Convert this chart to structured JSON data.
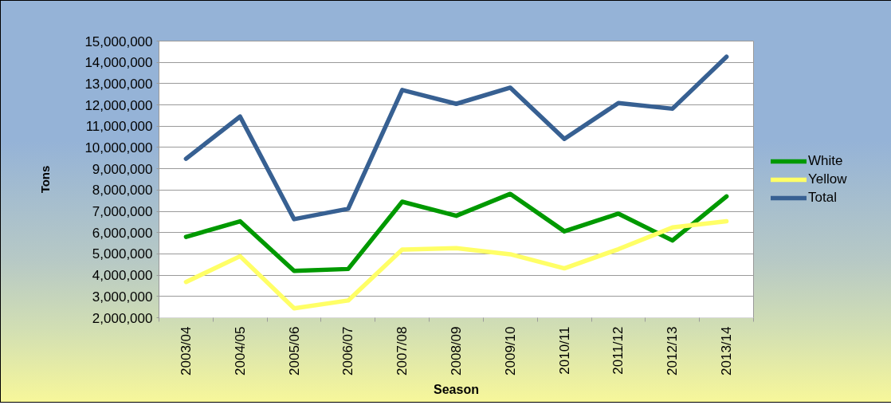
{
  "chart_data": {
    "type": "line",
    "xlabel": "Season",
    "ylabel": "Tons",
    "categories": [
      "2003/04",
      "2004/05",
      "2005/06",
      "2006/07",
      "2007/08",
      "2008/09",
      "2009/10",
      "2010/11",
      "2011/12",
      "2012/13",
      "2013/14"
    ],
    "series": [
      {
        "name": "White",
        "color": "#009900",
        "values": [
          5800000,
          6530000,
          4200000,
          4290000,
          7450000,
          6790000,
          7820000,
          6060000,
          6890000,
          5630000,
          7700000
        ]
      },
      {
        "name": "Yellow",
        "color": "#ffff66",
        "values": [
          3680000,
          4890000,
          2440000,
          2810000,
          5200000,
          5270000,
          4980000,
          4320000,
          5220000,
          6240000,
          6530000
        ]
      },
      {
        "name": "Total",
        "color": "#376092",
        "values": [
          9470000,
          11450000,
          6630000,
          7120000,
          12700000,
          12050000,
          12810000,
          10400000,
          12090000,
          11820000,
          14260000
        ]
      }
    ],
    "ylim": [
      2000000,
      15000000
    ],
    "yticks": [
      {
        "value": 2000000,
        "label": "2,000,000"
      },
      {
        "value": 3000000,
        "label": "3,000,000"
      },
      {
        "value": 4000000,
        "label": "4,000,000"
      },
      {
        "value": 5000000,
        "label": "5,000,000"
      },
      {
        "value": 6000000,
        "label": "6,000,000"
      },
      {
        "value": 7000000,
        "label": "7,000,000"
      },
      {
        "value": 8000000,
        "label": "8,000,000"
      },
      {
        "value": 9000000,
        "label": "9,000,000"
      },
      {
        "value": 10000000,
        "label": "10,000,000"
      },
      {
        "value": 11000000,
        "label": "11,000,000"
      },
      {
        "value": 12000000,
        "label": "12,000,000"
      },
      {
        "value": 13000000,
        "label": "13,000,000"
      },
      {
        "value": 14000000,
        "label": "14,000,000"
      },
      {
        "value": 15000000,
        "label": "15,000,000"
      }
    ],
    "grid": "y",
    "legend": "right",
    "line_style": "solid"
  }
}
